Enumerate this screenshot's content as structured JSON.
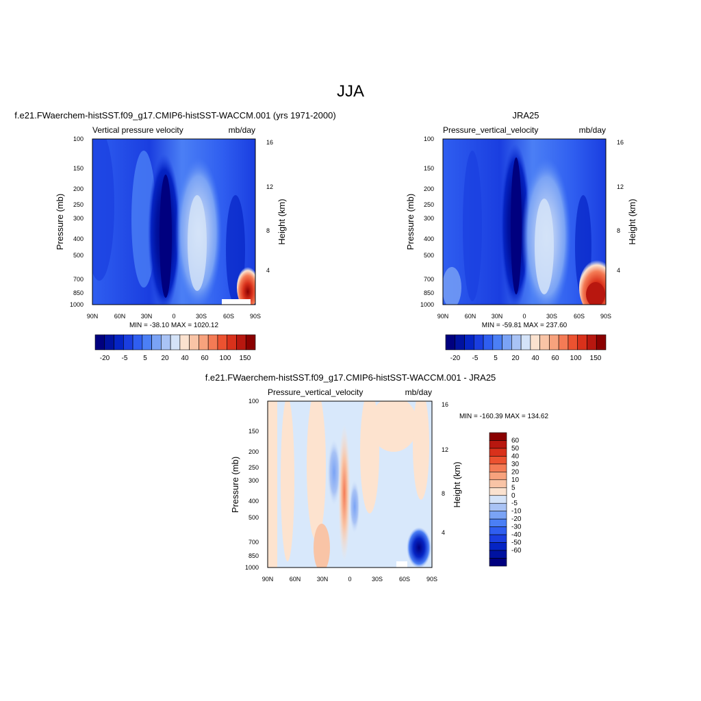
{
  "figure": {
    "title": "JJA"
  },
  "colors": {
    "blue_scale": [
      "#00007f",
      "#0012a0",
      "#0524c4",
      "#1a3ee0",
      "#2f5ef0",
      "#4b7ff5",
      "#7aa3f5",
      "#a9c3f5",
      "#d4e3f8"
    ],
    "red_scale": [
      "#fbe2cf",
      "#f9c4a6",
      "#f7a27d",
      "#f47b55",
      "#ec5230",
      "#d9311b",
      "#b8170f",
      "#8a0000"
    ],
    "light_blue": "#d8e8fb",
    "light_red": "#fde3cf"
  },
  "chart_data": [
    {
      "type": "heatmap",
      "title": "f.e21.FWaerchem-histSST.f09_g17.CMIP6-histSST-WACCM.001 (yrs 1971-2000)",
      "left_label": "Vertical pressure velocity",
      "right_label": "mb/day",
      "ylabel": "Pressure (mb)",
      "ylabel_right": "Height (km)",
      "x_ticks": [
        "90N",
        "60N",
        "30N",
        "0",
        "30S",
        "60S",
        "90S"
      ],
      "y_ticks": [
        "100",
        "150",
        "200",
        "250",
        "300",
        "400",
        "500",
        "700",
        "850",
        "1000"
      ],
      "y_right_ticks": [
        "16",
        "12",
        "8",
        "4"
      ],
      "ylim": [
        1000,
        100
      ],
      "y_scale": "log",
      "stats": "MIN = -38.10  MAX = 1020.12",
      "colorbar_levels": [
        "-20",
        "-5",
        "5",
        "20",
        "40",
        "60",
        "100",
        "150"
      ],
      "field_summary": [
        {
          "lat": "12N",
          "pressure_range": [
            100,
            1000
          ],
          "sign": "strong negative (ascent)"
        },
        {
          "lat": "20S",
          "pressure_range": [
            250,
            1000
          ],
          "sign": "weak positive (descent)"
        },
        {
          "lat": "80S",
          "pressure_range": [
            700,
            1000
          ],
          "sign": "strong positive"
        }
      ]
    },
    {
      "type": "heatmap",
      "title": "JRA25",
      "left_label": "Pressure_vertical_velocity",
      "right_label": "mb/day",
      "ylabel": "Pressure (mb)",
      "ylabel_right": "Height (km)",
      "x_ticks": [
        "90N",
        "60N",
        "30N",
        "0",
        "30S",
        "60S",
        "90S"
      ],
      "y_ticks": [
        "100",
        "150",
        "200",
        "250",
        "300",
        "400",
        "500",
        "700",
        "850",
        "1000"
      ],
      "y_right_ticks": [
        "16",
        "12",
        "8",
        "4"
      ],
      "ylim": [
        1000,
        100
      ],
      "y_scale": "log",
      "stats": "MIN = -59.81  MAX = 237.60",
      "colorbar_levels": [
        "-20",
        "-5",
        "5",
        "20",
        "40",
        "60",
        "100",
        "150"
      ],
      "field_summary": [
        {
          "lat": "10N",
          "pressure_range": [
            100,
            1000
          ],
          "sign": "strong negative (ascent)"
        },
        {
          "lat": "20S",
          "pressure_range": [
            250,
            1000
          ],
          "sign": "weak positive (descent)"
        },
        {
          "lat": "80S",
          "pressure_range": [
            700,
            1000
          ],
          "sign": "strong positive"
        }
      ]
    },
    {
      "type": "heatmap",
      "title": "f.e21.FWaerchem-histSST.f09_g17.CMIP6-histSST-WACCM.001 - JRA25",
      "left_label": "Pressure_vertical_velocity",
      "right_label": "mb/day",
      "ylabel": "Pressure (mb)",
      "ylabel_right": "Height (km)",
      "x_ticks": [
        "90N",
        "60N",
        "30N",
        "0",
        "30S",
        "60S",
        "90S"
      ],
      "y_ticks": [
        "100",
        "150",
        "200",
        "250",
        "300",
        "400",
        "500",
        "700",
        "850",
        "1000"
      ],
      "y_right_ticks": [
        "16",
        "12",
        "8",
        "4"
      ],
      "ylim": [
        1000,
        100
      ],
      "y_scale": "log",
      "stats": "MIN = -160.39  MAX = 134.62",
      "colorbar_levels": [
        "60",
        "50",
        "40",
        "30",
        "20",
        "10",
        "5",
        "0",
        "-5",
        "-10",
        "-20",
        "-30",
        "-40",
        "-50",
        "-60"
      ],
      "field_summary": [
        {
          "lat": "8N",
          "pressure_range": [
            250,
            850
          ],
          "sign": "positive"
        },
        {
          "lat": "75S",
          "pressure_range": [
            700,
            1000
          ],
          "sign": "strong negative"
        }
      ]
    }
  ]
}
